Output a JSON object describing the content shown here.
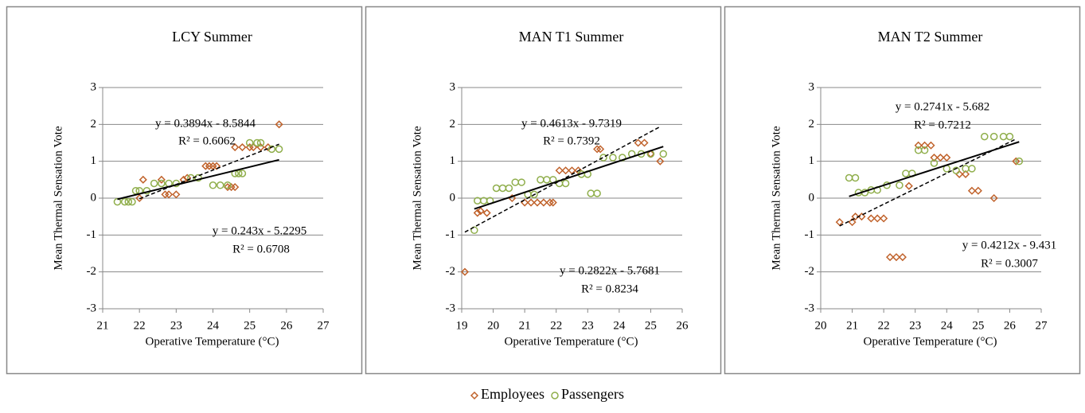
{
  "chart_data": [
    {
      "type": "scatter",
      "title": "LCY Summer",
      "x_label": "Operative Temperature (°C)",
      "y_label": "Mean Thermal Sensation Vote",
      "xlim": [
        21,
        27
      ],
      "xticks": [
        21,
        22,
        23,
        24,
        25,
        26,
        27
      ],
      "ylim": [
        -3,
        3
      ],
      "yticks": [
        -3,
        -2,
        -1,
        0,
        1,
        2,
        3
      ],
      "grid": true,
      "series": [
        {
          "name": "Employees",
          "color": "#c0622b",
          "marker": "diamond",
          "x": [
            22,
            22.1,
            22.6,
            22.7,
            22.8,
            23,
            23.2,
            23.3,
            23.8,
            23.9,
            24,
            24.1,
            24.4,
            24.5,
            24.6,
            24.6,
            24.8,
            25,
            25.1,
            25.3,
            25.5,
            25.8
          ],
          "values": [
            0,
            0.5,
            0.5,
            0.1,
            0.1,
            0.1,
            0.5,
            0.55,
            0.87,
            0.87,
            0.87,
            0.87,
            0.3,
            0.3,
            0.3,
            1.38,
            1.38,
            1.38,
            1.38,
            1.38,
            1.38,
            2.0
          ],
          "trendline": {
            "equation": "y = 0.3894x - 8.5844",
            "r2": "R² = 0.6062",
            "slope": 0.3894,
            "intercept": -8.5844,
            "dashed": true
          }
        },
        {
          "name": "Passengers",
          "color": "#8fae4b",
          "marker": "circle",
          "x": [
            21.4,
            21.6,
            21.7,
            21.8,
            21.9,
            22,
            22.2,
            22.4,
            22.6,
            22.8,
            23,
            23.4,
            23.6,
            24,
            24.2,
            24.4,
            24.6,
            24.7,
            24.8,
            25,
            25.2,
            25.3,
            25.6,
            25.8
          ],
          "values": [
            -0.1,
            -0.1,
            -0.1,
            -0.1,
            0.2,
            0.2,
            0.2,
            0.4,
            0.4,
            0.4,
            0.4,
            0.55,
            0.55,
            0.35,
            0.35,
            0.35,
            0.67,
            0.67,
            0.67,
            1.5,
            1.5,
            1.5,
            1.33,
            1.33
          ],
          "trendline": {
            "equation": "y = 0.243x - 5.2295",
            "r2": "R² = 0.6708",
            "slope": 0.243,
            "intercept": -5.2295,
            "dashed": false
          }
        }
      ]
    },
    {
      "type": "scatter",
      "title": "MAN T1 Summer",
      "x_label": "Operative Temperature (°C)",
      "y_label": "Mean Thermal Sensation Vote",
      "xlim": [
        19,
        26
      ],
      "xticks": [
        19,
        20,
        21,
        22,
        23,
        24,
        25,
        26
      ],
      "ylim": [
        -3,
        3
      ],
      "yticks": [
        -3,
        -2,
        -1,
        0,
        1,
        2,
        3
      ],
      "grid": true,
      "series": [
        {
          "name": "Employees",
          "color": "#c0622b",
          "marker": "diamond",
          "x": [
            19.1,
            19.5,
            19.6,
            19.8,
            20.6,
            21,
            21.2,
            21.4,
            21.6,
            21.8,
            21.9,
            22.1,
            22.3,
            22.5,
            22.7,
            23.3,
            23.4,
            24.6,
            24.8,
            25,
            25.3
          ],
          "values": [
            -2,
            -0.4,
            -0.35,
            -0.4,
            0,
            -0.12,
            -0.12,
            -0.12,
            -0.12,
            -0.12,
            -0.12,
            0.75,
            0.75,
            0.75,
            0.75,
            1.33,
            1.33,
            1.5,
            1.5,
            1.2,
            1.0
          ],
          "trendline": {
            "equation": "y = 0.4613x - 9.7319",
            "r2": "R² = 0.7392",
            "slope": 0.4613,
            "intercept": -9.7319,
            "dashed": true
          }
        },
        {
          "name": "Passengers",
          "color": "#8fae4b",
          "marker": "circle",
          "x": [
            19.4,
            19.5,
            19.7,
            19.9,
            20.1,
            20.3,
            20.5,
            20.7,
            20.9,
            21.1,
            21.3,
            21.5,
            21.7,
            21.9,
            22.1,
            22.3,
            22.8,
            23,
            23.1,
            23.3,
            23.5,
            23.8,
            24.1,
            24.4,
            24.7,
            25,
            25.4
          ],
          "values": [
            -0.87,
            -0.07,
            -0.07,
            -0.07,
            0.27,
            0.27,
            0.27,
            0.43,
            0.43,
            0.1,
            0.1,
            0.5,
            0.5,
            0.5,
            0.4,
            0.4,
            0.65,
            0.65,
            0.13,
            0.13,
            1.1,
            1.1,
            1.1,
            1.2,
            1.2,
            1.2,
            1.2
          ],
          "trendline": {
            "equation": "y = 0.2822x - 5.7681",
            "r2": "R² = 0.8234",
            "slope": 0.2822,
            "intercept": -5.7681,
            "dashed": false
          }
        }
      ]
    },
    {
      "type": "scatter",
      "title": "MAN T2 Summer",
      "x_label": "Operative Temperature (°C)",
      "y_label": "Mean Thermal Sensation Vote",
      "xlim": [
        20,
        27
      ],
      "xticks": [
        20,
        21,
        22,
        23,
        24,
        25,
        26,
        27
      ],
      "ylim": [
        -3,
        3
      ],
      "yticks": [
        -3,
        -2,
        -1,
        0,
        1,
        2,
        3
      ],
      "grid": true,
      "series": [
        {
          "name": "Employees",
          "color": "#c0622b",
          "marker": "diamond",
          "x": [
            20.6,
            21,
            21.1,
            21.3,
            21.6,
            21.8,
            22,
            22.2,
            22.4,
            22.6,
            22.8,
            23.1,
            23.3,
            23.5,
            23.6,
            23.8,
            24,
            24.4,
            24.6,
            24.8,
            25,
            25.5,
            26.2
          ],
          "values": [
            -0.65,
            -0.65,
            -0.5,
            -0.5,
            -0.55,
            -0.55,
            -0.55,
            -1.6,
            -1.6,
            -1.6,
            0.33,
            1.43,
            1.43,
            1.43,
            1.1,
            1.1,
            1.1,
            0.65,
            0.65,
            0.2,
            0.2,
            0,
            1.0
          ],
          "trendline": {
            "equation": "y = 0.4212x - 9.431",
            "r2": "R² = 0.3007",
            "slope": 0.4212,
            "intercept": -9.431,
            "dashed": true
          }
        },
        {
          "name": "Passengers",
          "color": "#8fae4b",
          "marker": "circle",
          "x": [
            20.9,
            21.1,
            21.2,
            21.4,
            21.6,
            21.8,
            22.1,
            22.5,
            22.7,
            22.9,
            23.1,
            23.3,
            23.6,
            24,
            24.3,
            24.6,
            24.8,
            25.2,
            25.5,
            25.8,
            26,
            26.3
          ],
          "values": [
            0.55,
            0.55,
            0.15,
            0.15,
            0.22,
            0.22,
            0.35,
            0.35,
            0.67,
            0.67,
            1.3,
            1.3,
            0.95,
            0.8,
            0.75,
            0.8,
            0.8,
            1.67,
            1.67,
            1.67,
            1.67,
            1.0
          ],
          "trendline": {
            "equation": "y = 0.2741x - 5.682",
            "r2": "R² = 0.7212",
            "slope": 0.2741,
            "intercept": -5.682,
            "dashed": false
          }
        }
      ]
    }
  ]
}
